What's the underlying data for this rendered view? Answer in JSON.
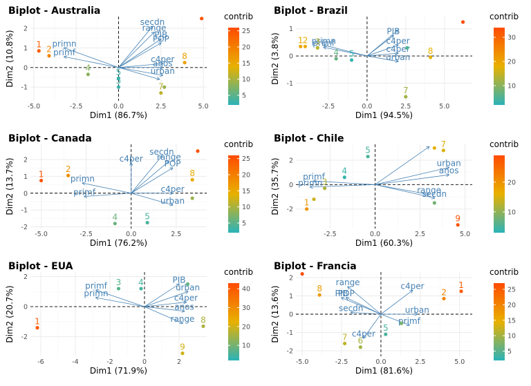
{
  "legend_title": "contrib",
  "colors": {
    "low": "#2ab3b9",
    "mid": "#e8b100",
    "high": "#ff4b00",
    "arrow": "#4682b4",
    "grid": "#ebebeb",
    "panel": "#ffffff"
  },
  "chart_data": [
    {
      "type": "scatter",
      "title": "Biplot - Australia",
      "xlabel": "Dim1 (86.7%)",
      "ylabel": "Dim2 (10.8%)",
      "xlim": [
        -5.2,
        5.2
      ],
      "ylim": [
        -1.7,
        2.6
      ],
      "xticks": [
        -5,
        -2.5,
        0,
        2.5,
        5
      ],
      "xtick_labels": [
        "-5.0",
        "-2.5",
        "0.0",
        "2.5",
        "5.0"
      ],
      "yticks": [
        -1,
        0,
        1,
        2
      ],
      "ytick_labels": [
        "-1",
        "0",
        "1",
        "2"
      ],
      "legend_ticks": [
        5,
        10,
        15,
        20,
        25
      ],
      "legend_range": [
        2,
        26
      ],
      "points": [
        {
          "label": "1",
          "x": -4.7,
          "y": 0.85,
          "c": 24
        },
        {
          "label": "2",
          "x": -4.1,
          "y": 0.6,
          "c": 19
        },
        {
          "label": "4",
          "x": -1.8,
          "y": -0.35,
          "c": 8
        },
        {
          "label": "5",
          "x": 0.0,
          "y": -1.0,
          "c": 3
        },
        {
          "label": "5",
          "x": 0.0,
          "y": -0.55,
          "c": 3
        },
        {
          "label": "7",
          "x": 2.5,
          "y": -1.3,
          "c": 11
        },
        {
          "label": "8",
          "x": 3.9,
          "y": 0.25,
          "c": 16
        },
        {
          "label": "",
          "x": 4.9,
          "y": 2.5,
          "c": 25
        },
        {
          "label": "",
          "x": 2.7,
          "y": -1.0,
          "c": 9
        }
      ],
      "arrows": [
        {
          "label": "secdn",
          "x": 2.0,
          "y": 2.1
        },
        {
          "label": "range",
          "x": 2.1,
          "y": 1.8
        },
        {
          "label": "PIB",
          "x": 2.5,
          "y": 1.45
        },
        {
          "label": "POP",
          "x": 2.5,
          "y": 1.25
        },
        {
          "label": "primn",
          "x": -3.2,
          "y": 1.0
        },
        {
          "label": "primf",
          "x": -3.2,
          "y": 0.55
        },
        {
          "label": "c4per",
          "x": 2.6,
          "y": 0.2
        },
        {
          "label": "anos",
          "x": 2.6,
          "y": 0.0
        },
        {
          "label": "urban",
          "x": 2.6,
          "y": -0.4
        },
        {
          "label": "",
          "x": 2.4,
          "y": -0.6
        }
      ]
    },
    {
      "type": "scatter",
      "title": "Biplot - Brazil",
      "xlabel": "Dim1 (94.5%)",
      "ylabel": "Dim2 (3.8%)",
      "xlim": [
        -4.6,
        6.8
      ],
      "ylim": [
        -1.65,
        1.45
      ],
      "xticks": [
        -2.5,
        0,
        2.5,
        5
      ],
      "xtick_labels": [
        "-2.5",
        "0.0",
        "2.5",
        "5.0"
      ],
      "yticks": [
        -1,
        0,
        1
      ],
      "ytick_labels": [
        "-1",
        "0",
        "1"
      ],
      "legend_ticks": [
        10,
        20,
        30
      ],
      "legend_range": [
        2,
        34
      ],
      "points": [
        {
          "label": "1",
          "x": -4.3,
          "y": 0.35,
          "c": 20
        },
        {
          "label": "2",
          "x": -4.0,
          "y": 0.35,
          "c": 19
        },
        {
          "label": "3",
          "x": -3.2,
          "y": 0.3,
          "c": 14
        },
        {
          "label": "4",
          "x": -2.0,
          "y": -0.1,
          "c": 7
        },
        {
          "label": "5",
          "x": -1.0,
          "y": -0.15,
          "c": 3
        },
        {
          "label": "7",
          "x": 2.5,
          "y": -1.5,
          "c": 12
        },
        {
          "label": "8",
          "x": 4.1,
          "y": -0.05,
          "c": 18
        },
        {
          "label": "",
          "x": 6.2,
          "y": 1.25,
          "c": 34
        },
        {
          "label": "",
          "x": 2.6,
          "y": 0.3,
          "c": 5
        }
      ],
      "arrows": [
        {
          "label": "PIB",
          "x": 1.7,
          "y": 0.75
        },
        {
          "label": "primn",
          "x": -2.8,
          "y": 0.4
        },
        {
          "label": "primf",
          "x": -2.8,
          "y": 0.32
        },
        {
          "label": "c4per",
          "x": 2.0,
          "y": 0.4
        },
        {
          "label": "c4per",
          "x": 2.0,
          "y": 0.1
        },
        {
          "label": "urban",
          "x": 2.0,
          "y": -0.2
        },
        {
          "label": "",
          "x": 2.0,
          "y": 0.95
        }
      ]
    },
    {
      "type": "scatter",
      "title": "Biplot - Canada",
      "xlabel": "Dim1 (76.2%)",
      "ylabel": "Dim2 (13.7%)",
      "xlim": [
        -5.6,
        4.2
      ],
      "ylim": [
        -2.1,
        2.9
      ],
      "xticks": [
        -5,
        -2.5,
        0,
        2.5
      ],
      "xtick_labels": [
        "-5.0",
        "-2.5",
        "0.0",
        "2.5"
      ],
      "yticks": [
        -2,
        -1,
        0,
        1,
        2
      ],
      "ytick_labels": [
        "-2",
        "-1",
        "0",
        "1",
        "2"
      ],
      "legend_ticks": [
        5,
        10,
        15,
        20,
        25
      ],
      "legend_range": [
        2,
        26
      ],
      "points": [
        {
          "label": "1",
          "x": -5.0,
          "y": 0.75,
          "c": 25
        },
        {
          "label": "2",
          "x": -3.5,
          "y": 1.05,
          "c": 18
        },
        {
          "label": "4",
          "x": -0.9,
          "y": -1.8,
          "c": 6
        },
        {
          "label": "5",
          "x": 0.9,
          "y": -1.75,
          "c": 4
        },
        {
          "label": "8",
          "x": 3.4,
          "y": 0.8,
          "c": 15
        },
        {
          "label": "",
          "x": 3.7,
          "y": 2.5,
          "c": 25
        },
        {
          "label": "",
          "x": 3.4,
          "y": -0.3,
          "c": 9
        }
      ],
      "arrows": [
        {
          "label": "secdn",
          "x": 1.7,
          "y": 2.2
        },
        {
          "label": "c4per",
          "x": 0.0,
          "y": 1.8
        },
        {
          "label": "range",
          "x": 2.1,
          "y": 1.9
        },
        {
          "label": "POP",
          "x": 2.3,
          "y": 1.5
        },
        {
          "label": "primn",
          "x": -2.7,
          "y": 0.6
        },
        {
          "label": "primf",
          "x": -2.6,
          "y": -0.2
        },
        {
          "label": "c4per",
          "x": 2.3,
          "y": 0.0
        },
        {
          "label": "urban",
          "x": 2.3,
          "y": -0.7
        }
      ]
    },
    {
      "type": "scatter",
      "title": "Biplot - Chile",
      "xlabel": "Dim1 (60.3%)",
      "ylabel": "Dim2 (35.7%)",
      "xlim": [
        -4.4,
        5.4
      ],
      "ylim": [
        -3.6,
        3.3
      ],
      "xticks": [
        -2.5,
        0,
        2.5,
        5
      ],
      "xtick_labels": [
        "-2.5",
        "0.0",
        "2.5",
        "5.0"
      ],
      "yticks": [
        -2,
        0,
        2
      ],
      "ytick_labels": [
        "-2",
        "0",
        "2"
      ],
      "legend_ticks": [
        10,
        20
      ],
      "legend_range": [
        3,
        29
      ],
      "points": [
        {
          "label": "1",
          "x": -3.8,
          "y": -2.0,
          "c": 20
        },
        {
          "label": "3",
          "x": -2.8,
          "y": -0.3,
          "c": 12
        },
        {
          "label": "4",
          "x": -1.7,
          "y": 0.6,
          "c": 4
        },
        {
          "label": "5",
          "x": -0.4,
          "y": 2.3,
          "c": 5
        },
        {
          "label": "7",
          "x": 3.8,
          "y": 2.8,
          "c": 15
        },
        {
          "label": "9",
          "x": 4.6,
          "y": -3.3,
          "c": 28
        },
        {
          "label": "",
          "x": -3.4,
          "y": -1.2,
          "c": 14
        },
        {
          "label": "",
          "x": 3.3,
          "y": 3.0,
          "c": 16
        },
        {
          "label": "",
          "x": 3.3,
          "y": -1.5,
          "c": 8
        }
      ],
      "arrows": [
        {
          "label": "primf",
          "x": -3.4,
          "y": 0.3
        },
        {
          "label": "primn",
          "x": -3.6,
          "y": -0.2
        },
        {
          "label": "urban",
          "x": 4.1,
          "y": 1.4
        },
        {
          "label": "anos",
          "x": 4.1,
          "y": 0.8
        },
        {
          "label": "range",
          "x": 3.0,
          "y": -0.8
        },
        {
          "label": "secdn",
          "x": 3.3,
          "y": -1.1
        },
        {
          "label": "",
          "x": 3.0,
          "y": 3.1
        }
      ]
    },
    {
      "type": "scatter",
      "title": "Biplot - EUA",
      "xlabel": "Dim1 (71.9%)",
      "ylabel": "Dim2 (20.7%)",
      "xlim": [
        -6.6,
        3.6
      ],
      "ylim": [
        -3.3,
        2.3
      ],
      "xticks": [
        -6,
        -4,
        -2,
        0,
        2
      ],
      "xtick_labels": [
        "-6",
        "-4",
        "-2",
        "0",
        "2"
      ],
      "yticks": [
        -2,
        0,
        2
      ],
      "ytick_labels": [
        "-2",
        "0",
        "2"
      ],
      "legend_ticks": [
        10,
        20,
        30,
        40
      ],
      "legend_range": [
        2,
        43
      ],
      "points": [
        {
          "label": "1",
          "x": -6.2,
          "y": -1.4,
          "c": 40
        },
        {
          "label": "3",
          "x": -1.5,
          "y": 1.2,
          "c": 7
        },
        {
          "label": "4",
          "x": -0.2,
          "y": 1.2,
          "c": 5
        },
        {
          "label": "8",
          "x": 3.4,
          "y": -1.3,
          "c": 16
        },
        {
          "label": "9",
          "x": 2.2,
          "y": -3.1,
          "c": 20
        },
        {
          "label": "",
          "x": 2.5,
          "y": 1.5,
          "c": 8
        }
      ],
      "arrows": [
        {
          "label": "primf",
          "x": -2.8,
          "y": 1.1
        },
        {
          "label": "primn",
          "x": -2.8,
          "y": 0.6
        },
        {
          "label": "PIB",
          "x": 2.0,
          "y": 1.5
        },
        {
          "label": "urban",
          "x": 2.5,
          "y": 1.0
        },
        {
          "label": "c4per",
          "x": 2.4,
          "y": 0.3
        },
        {
          "label": "anos",
          "x": 2.3,
          "y": -0.3
        },
        {
          "label": "range",
          "x": 2.2,
          "y": -1.1
        }
      ]
    },
    {
      "type": "scatter",
      "title": "Biplot - Francia",
      "xlabel": "Dim1 (81.6%)",
      "ylabel": "Dim2 (13.6%)",
      "xlim": [
        -5.4,
        5.8
      ],
      "ylim": [
        -2.3,
        2.3
      ],
      "xticks": [
        -5,
        -2.5,
        0,
        2.5,
        5
      ],
      "xtick_labels": [
        "-5.0",
        "-2.5",
        "0.0",
        "2.5",
        "5.0"
      ],
      "yticks": [
        -2,
        -1,
        0,
        1,
        2
      ],
      "ytick_labels": [
        "-2",
        "-1",
        "0",
        "1",
        "2"
      ],
      "legend_ticks": [
        5,
        10,
        15,
        20,
        25
      ],
      "legend_range": [
        2,
        27
      ],
      "points": [
        {
          "label": "",
          "x": -5.0,
          "y": 2.2,
          "c": 27
        },
        {
          "label": "8",
          "x": -3.9,
          "y": 1.05,
          "c": 17
        },
        {
          "label": "2",
          "x": 4.0,
          "y": 0.85,
          "c": 20
        },
        {
          "label": "1",
          "x": 5.1,
          "y": 1.25,
          "c": 25
        },
        {
          "label": "5",
          "x": 0.3,
          "y": -1.1,
          "c": 4
        },
        {
          "label": "7",
          "x": -2.3,
          "y": -1.6,
          "c": 12
        },
        {
          "label": "6",
          "x": -1.3,
          "y": -1.8,
          "c": 10
        },
        {
          "label": "",
          "x": 1.3,
          "y": -0.5,
          "c": 7
        }
      ],
      "arrows": [
        {
          "label": "range",
          "x": -2.1,
          "y": 1.5
        },
        {
          "label": "PIB",
          "x": -2.5,
          "y": 0.9
        },
        {
          "label": "POP",
          "x": -2.2,
          "y": 0.9
        },
        {
          "label": "secdn",
          "x": -1.9,
          "y": 0.1
        },
        {
          "label": "c4per",
          "x": -1.1,
          "y": -1.3
        },
        {
          "label": "c4per",
          "x": 2.0,
          "y": 1.3
        },
        {
          "label": "urban",
          "x": 2.3,
          "y": 0.0
        },
        {
          "label": "primf",
          "x": 1.8,
          "y": -0.6
        }
      ]
    }
  ]
}
